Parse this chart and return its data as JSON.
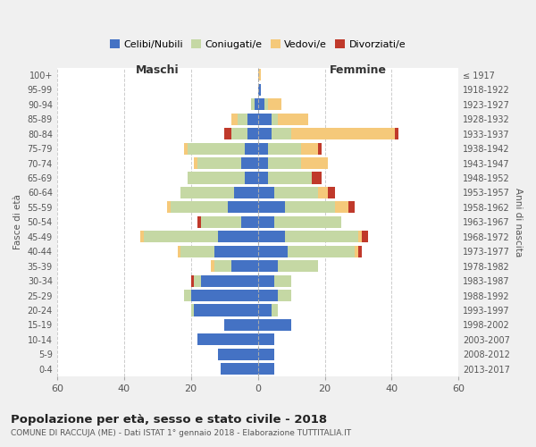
{
  "age_groups": [
    "0-4",
    "5-9",
    "10-14",
    "15-19",
    "20-24",
    "25-29",
    "30-34",
    "35-39",
    "40-44",
    "45-49",
    "50-54",
    "55-59",
    "60-64",
    "65-69",
    "70-74",
    "75-79",
    "80-84",
    "85-89",
    "90-94",
    "95-99",
    "100+"
  ],
  "birth_years": [
    "2013-2017",
    "2008-2012",
    "2003-2007",
    "1998-2002",
    "1993-1997",
    "1988-1992",
    "1983-1987",
    "1978-1982",
    "1973-1977",
    "1968-1972",
    "1963-1967",
    "1958-1962",
    "1953-1957",
    "1948-1952",
    "1943-1947",
    "1938-1942",
    "1933-1937",
    "1928-1932",
    "1923-1927",
    "1918-1922",
    "≤ 1917"
  ],
  "male_celibe": [
    11,
    12,
    18,
    10,
    19,
    20,
    17,
    8,
    13,
    12,
    5,
    9,
    7,
    4,
    5,
    4,
    3,
    3,
    1,
    0,
    0
  ],
  "male_coniugato": [
    0,
    0,
    0,
    0,
    1,
    2,
    2,
    5,
    10,
    22,
    12,
    17,
    16,
    17,
    13,
    17,
    5,
    3,
    1,
    0,
    0
  ],
  "male_vedovo": [
    0,
    0,
    0,
    0,
    0,
    0,
    0,
    1,
    1,
    1,
    0,
    1,
    0,
    0,
    1,
    1,
    0,
    2,
    0,
    0,
    0
  ],
  "male_divorziato": [
    0,
    0,
    0,
    0,
    0,
    0,
    1,
    0,
    0,
    0,
    1,
    0,
    0,
    0,
    0,
    0,
    2,
    0,
    0,
    0,
    0
  ],
  "female_celibe": [
    5,
    5,
    5,
    10,
    4,
    6,
    5,
    6,
    9,
    8,
    5,
    8,
    5,
    3,
    3,
    3,
    4,
    4,
    2,
    1,
    0
  ],
  "female_coniugato": [
    0,
    0,
    0,
    0,
    2,
    4,
    5,
    12,
    20,
    22,
    20,
    15,
    13,
    13,
    10,
    10,
    6,
    2,
    1,
    0,
    0
  ],
  "female_vedovo": [
    0,
    0,
    0,
    0,
    0,
    0,
    0,
    0,
    1,
    1,
    0,
    4,
    3,
    0,
    8,
    5,
    31,
    9,
    4,
    0,
    1
  ],
  "female_divorziato": [
    0,
    0,
    0,
    0,
    0,
    0,
    0,
    0,
    1,
    2,
    0,
    2,
    2,
    3,
    0,
    1,
    1,
    0,
    0,
    0,
    0
  ],
  "colors": {
    "celibe": "#4472c4",
    "coniugato": "#c5d8a4",
    "vedovo": "#f5c97a",
    "divorziato": "#c0392b"
  },
  "xlim": 60,
  "title": "Popolazione per età, sesso e stato civile - 2018",
  "subtitle": "COMUNE DI RACCUJA (ME) - Dati ISTAT 1° gennaio 2018 - Elaborazione TUTTITALIA.IT",
  "ylabel": "Fasce di età",
  "ylabel_right": "Anni di nascita",
  "xlabel_maschi": "Maschi",
  "xlabel_femmine": "Femmine",
  "bg_color": "#f0f0f0",
  "plot_bg_color": "#ffffff"
}
